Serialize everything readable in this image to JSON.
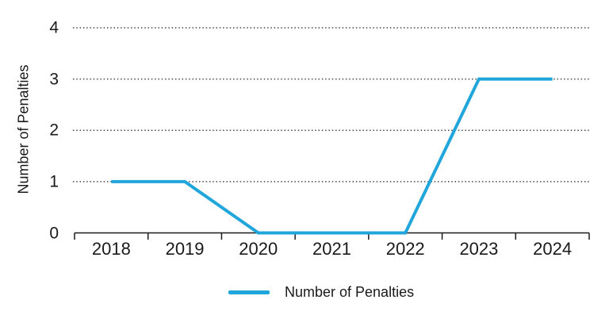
{
  "chart_data": {
    "type": "line",
    "categories": [
      "2018",
      "2019",
      "2020",
      "2021",
      "2022",
      "2023",
      "2024"
    ],
    "series": [
      {
        "name": "Number of Penalties",
        "values": [
          1,
          1,
          0,
          0,
          0,
          3,
          3
        ],
        "color": "#21A6DB"
      }
    ],
    "title": "",
    "xlabel": "",
    "ylabel": "Number of Penalties",
    "yticks": [
      0,
      1,
      2,
      3,
      4
    ],
    "ylim": [
      0,
      4
    ],
    "grid": "horizontal-dotted",
    "legend_position": "bottom"
  },
  "legend": {
    "label": "Number of Penalties"
  },
  "colors": {
    "line": "#21A6DB",
    "text": "#1a1a1a",
    "grid": "#3c3c3c",
    "background": "#ffffff"
  }
}
